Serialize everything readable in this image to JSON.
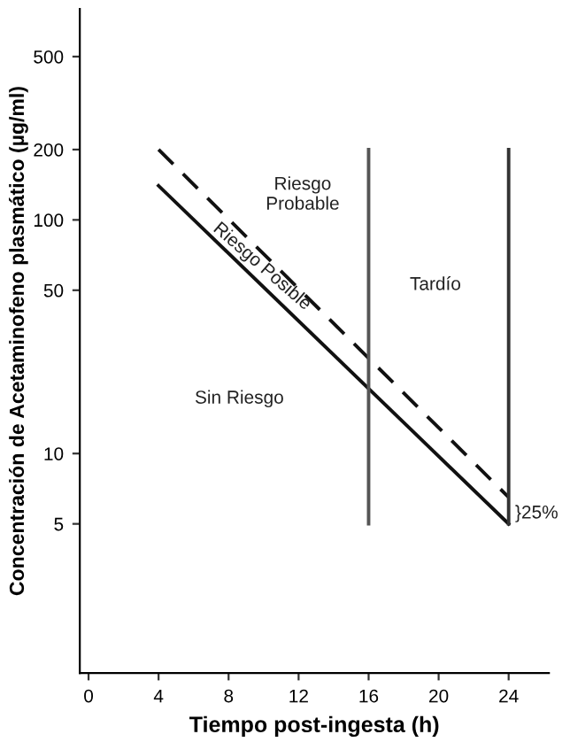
{
  "chart_data": {
    "type": "line",
    "xlabel": "Tiempo post-ingesta (h)",
    "ylabel": "Concentración de Acetaminofeno plasmático (µg/ml)",
    "log": "y",
    "xlim": [
      -0.5,
      26.3
    ],
    "ylim": [
      1.15,
      800
    ],
    "xticks": [
      0,
      4,
      8,
      12,
      16,
      20,
      24
    ],
    "yticks": [
      5,
      10,
      50,
      100,
      200,
      500
    ],
    "marker": "none",
    "series": [
      {
        "color": "#111111",
        "x": [
          4,
          24
        ],
        "values": [
          140,
          5
        ],
        "line_style": "solid"
      },
      {
        "color": "#111111",
        "x": [
          4,
          24
        ],
        "values": [
          200,
          6.5
        ],
        "line_style": "dashed"
      },
      {
        "color": "#555555",
        "x": [
          16,
          16
        ],
        "values": [
          5,
          200
        ],
        "line_style": "solid"
      },
      {
        "color": "#333333",
        "x": [
          24,
          24
        ],
        "values": [
          5,
          200
        ],
        "line_style": "solid"
      }
    ],
    "annotations": [
      "Riesgo\nProbable",
      "Tardío",
      "Sin Riesgo",
      {
        "text": "Riesgo Posible",
        "x": 9.9,
        "y": 63
      },
      "}25%"
    ]
  }
}
